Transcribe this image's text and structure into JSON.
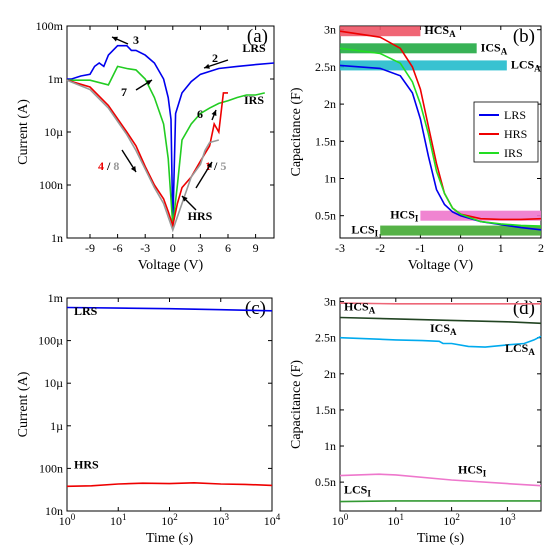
{
  "chart_data": [
    {
      "type": "line",
      "panel_label": "(a)",
      "xlabel": "Voltage (V)",
      "ylabel": "Current (A)",
      "xlim": [
        -11.5,
        11
      ],
      "y_scale": "log",
      "ylim": [
        1e-09,
        0.1
      ],
      "x_ticks": [
        -9,
        -6,
        -3,
        0,
        3,
        6,
        9
      ],
      "x_tick_labels": [
        "-9",
        "-6",
        "-3",
        "0",
        "3",
        "6",
        "9"
      ],
      "y_ticks": [
        1e-09,
        1e-07,
        1e-05,
        0.001,
        0.1
      ],
      "y_tick_labels": [
        "1n",
        "100n",
        "10µ",
        "1m",
        "100m"
      ],
      "series": [
        {
          "name": "LRS",
          "color": "#0000ee",
          "x": [
            -11.5,
            -11,
            -10,
            -9,
            -8.5,
            -8,
            -7.5,
            -7,
            -6,
            -5,
            -4.5,
            -4,
            -3,
            -2,
            -1.5,
            -1,
            -0.5,
            -0.2,
            0,
            0.3,
            1,
            2,
            3,
            5,
            7,
            9,
            11
          ],
          "y": [
            0.001,
            0.001,
            0.0013,
            0.0015,
            0.003,
            0.004,
            0.003,
            0.008,
            0.018,
            0.018,
            0.012,
            0.012,
            0.008,
            0.004,
            0.002,
            0.001,
            0.0002,
            3e-05,
            3e-09,
            5e-05,
            0.0003,
            0.0008,
            0.0015,
            0.0025,
            0.003,
            0.0035,
            0.004
          ]
        },
        {
          "name": "IRS",
          "color": "#22cc22",
          "x": [
            -11.5,
            -9,
            -7,
            -6,
            -5,
            -4,
            -3,
            -2,
            -1,
            -0.5,
            0,
            0.5,
            1,
            2,
            3,
            4,
            5,
            6,
            7,
            8,
            9,
            10
          ],
          "y": [
            0.0009,
            0.0009,
            0.0006,
            0.003,
            0.0025,
            0.0022,
            0.001,
            0.0002,
            2e-05,
            1e-06,
            3e-09,
            1e-07,
            5e-06,
            2e-05,
            5e-05,
            8e-05,
            0.00012,
            0.00015,
            0.0002,
            0.00025,
            0.00025,
            0.0003
          ]
        },
        {
          "name": "HRS",
          "color": "#ee0000",
          "x": [
            -11.5,
            -9,
            -7,
            -5,
            -4,
            -3,
            -2,
            -1,
            -0.5,
            0,
            0.5,
            1,
            2,
            3,
            4,
            4.5,
            5,
            5.5,
            6
          ],
          "y": [
            0.0009,
            0.0005,
            0.0001,
            1e-05,
            3e-06,
            5e-07,
            1e-07,
            3e-08,
            1e-08,
            3e-09,
            2e-08,
            8e-08,
            2e-07,
            8e-07,
            3e-06,
            2e-05,
            1e-05,
            0.0003,
            0.0003
          ]
        },
        {
          "name": "HRS-gray",
          "color": "#999999",
          "x": [
            -11.5,
            -9,
            -7,
            -5,
            -4,
            -3,
            -2,
            -1,
            0,
            1,
            2,
            3,
            3.5,
            4,
            5
          ],
          "y": [
            0.0009,
            0.0004,
            8e-05,
            8e-06,
            2e-06,
            4e-07,
            8e-08,
            2e-08,
            2e-09,
            2e-08,
            2e-07,
            6e-07,
            2e-06,
            4e-06,
            5e-06
          ]
        }
      ],
      "annotations": [
        "LRS",
        "IRS",
        "HRS",
        "1",
        "2",
        "3",
        "4",
        "5",
        "6",
        "7",
        "8",
        "/",
        "/"
      ]
    },
    {
      "type": "line",
      "panel_label": "(b)",
      "xlabel": "Voltage (V)",
      "ylabel": "Capacitance (F)",
      "xlim": [
        -3,
        2
      ],
      "ylim": [
        2e-10,
        3.05e-09
      ],
      "x_ticks": [
        -3,
        -2,
        -1,
        0,
        1,
        2
      ],
      "x_tick_labels": [
        "-3",
        "-2",
        "-1",
        "0",
        "1",
        "2"
      ],
      "y_ticks": [
        5e-10,
        1e-09,
        1.5e-09,
        2e-09,
        2.5e-09,
        3e-09
      ],
      "y_tick_labels": [
        "0.5n",
        "1n",
        "1.5n",
        "2n",
        "2.5n",
        "3n"
      ],
      "legend": {
        "entries": [
          "LRS",
          "HRS",
          "IRS"
        ],
        "placement": "right"
      },
      "series": [
        {
          "name": "LRS",
          "color": "#0000ee",
          "x": [
            -3,
            -2,
            -1.5,
            -1.2,
            -1,
            -0.8,
            -0.6,
            -0.4,
            -0.2,
            0,
            0.5,
            1,
            1.5,
            2
          ],
          "y": [
            2.52e-09,
            2.48e-09,
            2.38e-09,
            2.15e-09,
            1.8e-09,
            1.3e-09,
            8.5e-10,
            6.5e-10,
            5.5e-10,
            5e-10,
            4.2e-10,
            3.8e-10,
            3.4e-10,
            3.1e-10
          ]
        },
        {
          "name": "HRS",
          "color": "#ee0000",
          "x": [
            -3,
            -2,
            -1.5,
            -1.2,
            -1,
            -0.8,
            -0.6,
            -0.4,
            -0.2,
            0,
            0.5,
            1,
            1.5,
            2
          ],
          "y": [
            2.98e-09,
            2.9e-09,
            2.75e-09,
            2.5e-09,
            2.2e-09,
            1.7e-09,
            1.2e-09,
            8e-10,
            6e-10,
            5.2e-10,
            4.6e-10,
            4.5e-10,
            4.5e-10,
            4.6e-10
          ]
        },
        {
          "name": "IRS",
          "color": "#22dd22",
          "x": [
            -3,
            -2,
            -1.5,
            -1.2,
            -1,
            -0.8,
            -0.6,
            -0.4,
            -0.2,
            0,
            0.5,
            1,
            1.5,
            2
          ],
          "y": [
            2.75e-09,
            2.68e-09,
            2.55e-09,
            2.3e-09,
            2e-09,
            1.6e-09,
            1.1e-09,
            8e-10,
            6e-10,
            5.2e-10,
            4.2e-10,
            3.9e-10,
            3.7e-10,
            3.6e-10
          ]
        }
      ],
      "bands": [
        {
          "label_main": "HCS",
          "label_sub": "A",
          "color": "#ee5566",
          "x": [
            -3,
            -1.0
          ],
          "y": 2.98e-09
        },
        {
          "label_main": "ICS",
          "label_sub": "A",
          "color": "#22aa44",
          "x": [
            -3,
            0.4
          ],
          "y": 2.75e-09
        },
        {
          "label_main": "LCS",
          "label_sub": "A",
          "color": "#22bbcc",
          "x": [
            -3,
            1.15
          ],
          "y": 2.52e-09
        },
        {
          "label_main": "HCS",
          "label_sub": "I",
          "color": "#ee77cc",
          "x": [
            -1.0,
            2
          ],
          "y": 5e-10
        },
        {
          "label_main": "LCS",
          "label_sub": "I",
          "color": "#44aa33",
          "x": [
            -2.0,
            2
          ],
          "y": 3e-10
        }
      ]
    },
    {
      "type": "line",
      "panel_label": "(c)",
      "xlabel": "Time (s)",
      "ylabel": "Current (A)",
      "x_scale": "log",
      "xlim": [
        1,
        10000
      ],
      "y_scale": "log",
      "ylim": [
        1e-08,
        0.001
      ],
      "x_ticks": [
        1,
        10,
        100,
        1000,
        10000
      ],
      "x_tick_labels": [
        "10^0",
        "10^1",
        "10^2",
        "10^3",
        "10^4"
      ],
      "y_ticks": [
        1e-08,
        1e-07,
        1e-06,
        1e-05,
        0.0001,
        0.001
      ],
      "y_tick_labels": [
        "10n",
        "100n",
        "1µ",
        "10µ",
        "100µ",
        "1m"
      ],
      "series": [
        {
          "name": "LRS",
          "color": "#0000ee",
          "x": [
            1,
            10,
            100,
            1000,
            10000
          ],
          "y": [
            0.0006,
            0.00058,
            0.00056,
            0.00053,
            0.0005
          ]
        },
        {
          "name": "HRS",
          "color": "#ee0000",
          "x": [
            1,
            3,
            10,
            30,
            100,
            300,
            1000,
            3000,
            10000
          ],
          "y": [
            3.8e-08,
            3.9e-08,
            4.3e-08,
            4.5e-08,
            4.4e-08,
            4.6e-08,
            4.3e-08,
            4.2e-08,
            4e-08
          ]
        }
      ],
      "annotations": [
        "LRS",
        "HRS"
      ]
    },
    {
      "type": "line",
      "panel_label": "(d)",
      "xlabel": "Time (s)",
      "ylabel": "Capacitance (F)",
      "x_scale": "log",
      "xlim": [
        1,
        4000
      ],
      "ylim": [
        1e-10,
        3.05e-09
      ],
      "x_ticks": [
        1,
        10,
        100,
        1000
      ],
      "x_tick_labels": [
        "10^0",
        "10^1",
        "10^2",
        "10^3"
      ],
      "y_ticks": [
        5e-10,
        1e-09,
        1.5e-09,
        2e-09,
        2.5e-09,
        3e-09
      ],
      "y_tick_labels": [
        "0.5n",
        "1n",
        "1.5n",
        "2n",
        "2.5n",
        "3n"
      ],
      "series": [
        {
          "name": "HCS_A",
          "color": "#ee6677",
          "x": [
            1,
            10,
            100,
            1000,
            4000
          ],
          "y": [
            2.98e-09,
            2.97e-09,
            2.97e-09,
            2.97e-09,
            2.97e-09
          ]
        },
        {
          "name": "ICS_A",
          "color": "#224422",
          "x": [
            1,
            10,
            100,
            1000,
            4000
          ],
          "y": [
            2.78e-09,
            2.76e-09,
            2.74e-09,
            2.72e-09,
            2.7e-09
          ]
        },
        {
          "name": "LCS_A",
          "color": "#00aaee",
          "x": [
            1,
            5,
            10,
            30,
            60,
            70,
            100,
            200,
            400,
            1000,
            2000,
            3000,
            4000
          ],
          "y": [
            2.5e-09,
            2.48e-09,
            2.47e-09,
            2.46e-09,
            2.45e-09,
            2.42e-09,
            2.42e-09,
            2.38e-09,
            2.37e-09,
            2.4e-09,
            2.42e-09,
            2.47e-09,
            2.52e-09
          ]
        },
        {
          "name": "HCS_I",
          "color": "#ee77cc",
          "x": [
            1,
            5,
            10,
            100,
            1000,
            4000
          ],
          "y": [
            5.9e-10,
            6.1e-10,
            6e-10,
            5.3e-10,
            4.8e-10,
            4.5e-10
          ]
        },
        {
          "name": "LCS_I",
          "color": "#339933",
          "x": [
            1,
            10,
            100,
            1000,
            4000
          ],
          "y": [
            2.3e-10,
            2.4e-10,
            2.4e-10,
            2.4e-10,
            2.4e-10
          ]
        }
      ],
      "labels": [
        {
          "main": "HCS",
          "sub": "A"
        },
        {
          "main": "ICS",
          "sub": "A"
        },
        {
          "main": "LCS",
          "sub": "A"
        },
        {
          "main": "HCS",
          "sub": "I"
        },
        {
          "main": "LCS",
          "sub": "I"
        }
      ]
    }
  ]
}
